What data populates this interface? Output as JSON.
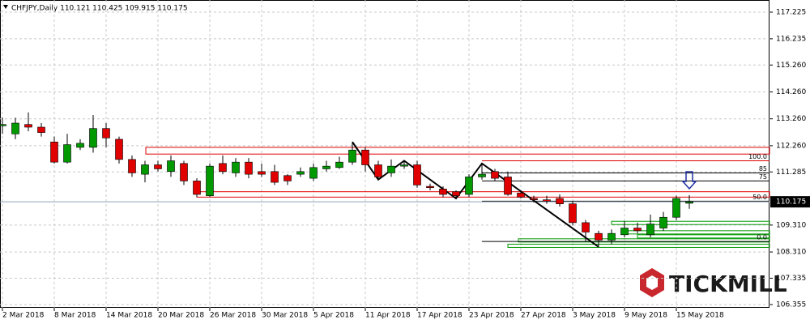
{
  "chart_data": {
    "type": "candlestick",
    "title": "CHFJPY,Daily  110.121 110.425 109.915 110.175",
    "categories": [
      "2 Mar 2018",
      null,
      null,
      null,
      "8 Mar 2018",
      null,
      null,
      null,
      "14 Mar 2018",
      null,
      null,
      null,
      "20 Mar 2018",
      null,
      null,
      null,
      "26 Mar 2018",
      null,
      null,
      null,
      "30 Mar 2018",
      null,
      null,
      null,
      "5 Apr 2018",
      null,
      null,
      null,
      "11 Apr 2018",
      null,
      null,
      null,
      "17 Apr 2018",
      null,
      null,
      null,
      "23 Apr 2018",
      null,
      null,
      null,
      "27 Apr 2018",
      null,
      null,
      null,
      "3 May 2018",
      null,
      null,
      null,
      "9 May 2018",
      null,
      null,
      null,
      "15 May 2018",
      null
    ],
    "open": [
      113.0,
      112.7,
      113.05,
      112.95,
      112.4,
      111.65,
      112.2,
      112.2,
      112.9,
      112.5,
      111.75,
      111.2,
      111.55,
      111.3,
      111.6,
      110.95,
      110.4,
      111.6,
      111.25,
      111.65,
      111.3,
      111.3,
      111.15,
      111.2,
      111.05,
      111.4,
      111.45,
      111.65,
      112.1,
      111.55,
      111.25,
      111.5,
      111.55,
      110.75,
      110.65,
      110.55,
      110.45,
      111.1,
      111.3,
      111.1,
      110.5,
      110.3,
      110.25,
      110.3,
      110.1,
      109.4,
      109.0,
      108.75,
      108.95,
      109.2,
      108.95,
      109.2,
      109.6,
      110.121
    ],
    "high": [
      113.3,
      113.3,
      113.5,
      113.1,
      112.6,
      112.7,
      112.5,
      113.4,
      113.1,
      112.6,
      111.9,
      111.7,
      111.7,
      111.9,
      111.7,
      111.05,
      111.6,
      111.9,
      111.8,
      111.8,
      111.6,
      111.55,
      111.2,
      111.45,
      111.6,
      111.7,
      111.85,
      112.4,
      112.2,
      111.7,
      111.75,
      111.7,
      111.7,
      110.85,
      110.75,
      110.6,
      111.2,
      111.6,
      111.4,
      111.3,
      110.6,
      110.4,
      110.4,
      110.45,
      110.2,
      109.5,
      109.1,
      109.15,
      109.45,
      109.4,
      109.7,
      109.8,
      110.4,
      110.425
    ],
    "low": [
      112.7,
      112.5,
      112.8,
      112.6,
      111.6,
      111.6,
      112.1,
      112.0,
      112.2,
      111.6,
      111.1,
      110.9,
      111.3,
      111.1,
      110.8,
      110.35,
      110.35,
      111.2,
      111.1,
      111.05,
      111.1,
      110.8,
      110.8,
      111.1,
      110.95,
      111.3,
      111.4,
      111.55,
      111.3,
      111.0,
      111.1,
      111.4,
      110.7,
      110.6,
      110.35,
      110.3,
      110.35,
      111.0,
      110.95,
      110.4,
      110.3,
      110.15,
      110.1,
      110.0,
      109.3,
      108.7,
      108.5,
      108.6,
      108.85,
      109.0,
      108.85,
      109.1,
      109.5,
      109.915
    ],
    "close": [
      113.05,
      113.1,
      112.95,
      112.75,
      111.65,
      112.3,
      112.35,
      112.9,
      112.55,
      111.75,
      111.25,
      111.55,
      111.4,
      111.7,
      110.95,
      110.45,
      111.5,
      111.3,
      111.65,
      111.2,
      111.2,
      110.9,
      110.95,
      111.3,
      111.45,
      111.5,
      111.65,
      112.1,
      111.55,
      111.1,
      111.5,
      111.55,
      110.8,
      110.7,
      110.45,
      110.4,
      111.1,
      111.2,
      111.05,
      110.45,
      110.35,
      110.25,
      110.2,
      110.1,
      109.4,
      109.05,
      108.75,
      109.0,
      109.2,
      109.1,
      109.35,
      109.6,
      110.3,
      110.175
    ],
    "up_color": "#009900",
    "down_color": "#e00000",
    "ylim": [
      106.235,
      117.677
    ],
    "yticks": [
      106.355,
      107.335,
      {
        "value": 108.31,
        "label": "108.310"
      },
      {
        "value": 109.31,
        "label": "109.310"
      },
      111.285,
      {
        "value": 112.26,
        "label": "112.260"
      },
      {
        "value": 113.26,
        "label": "113.260"
      },
      {
        "value": 114.26,
        "label": "114.260"
      },
      {
        "value": 115.26,
        "label": "115.260"
      },
      116.235,
      117.225
    ],
    "last_price": {
      "value": 110.175,
      "label": "110.175"
    },
    "grid": true,
    "resistance_zones": [
      [
        111.95,
        112.2
      ],
      [
        110.35,
        110.55
      ]
    ],
    "fibonacci": [
      {
        "label": "100.0",
        "price": 111.7
      },
      {
        "label": "85",
        "price": 111.25
      },
      {
        "label": "75",
        "price": 110.95
      },
      {
        "label": "50.0",
        "price": 110.2
      },
      {
        "label": "0.0",
        "price": 108.7
      }
    ],
    "support_lines": [
      109.45,
      109.1,
      108.95,
      108.8,
      108.6
    ],
    "brand": "TICKMILL"
  }
}
